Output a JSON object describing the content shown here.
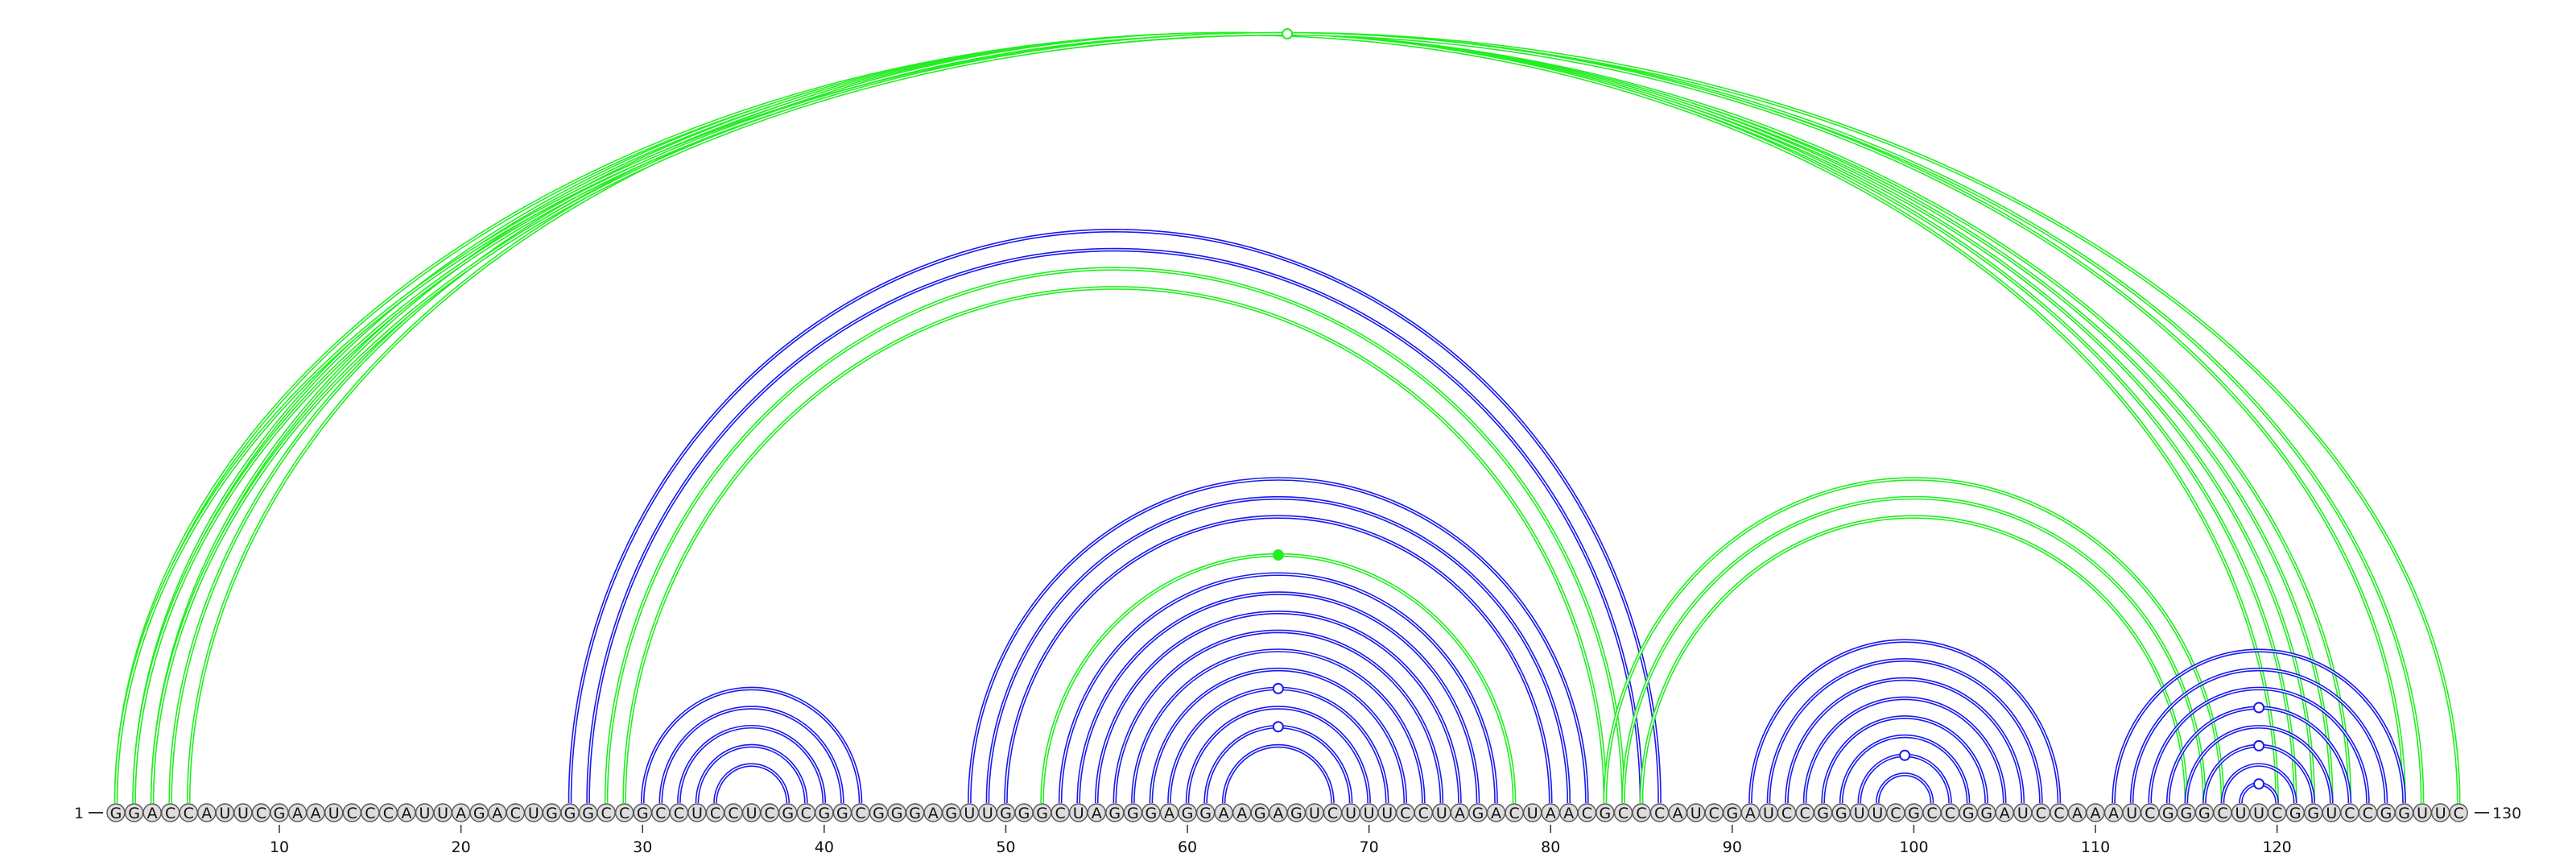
{
  "sequence": "GGACCAUUCGAAUCCCAUUAGACUGGGCCGCCUCCUCGCGGCGGGAGUUGGGCUAGGGAGGAAGAGUCUUUCCUAGACUAACGCCCAUCGAUCCGGUUCGCCGGAUCCAAAUCGGGCUUCGGUCCGGUUC",
  "start_label": "1",
  "end_label": "130",
  "ticks": [
    {
      "pos": 10,
      "label": "10"
    },
    {
      "pos": 20,
      "label": "20"
    },
    {
      "pos": 30,
      "label": "30"
    },
    {
      "pos": 40,
      "label": "40"
    },
    {
      "pos": 50,
      "label": "50"
    },
    {
      "pos": 60,
      "label": "60"
    },
    {
      "pos": 70,
      "label": "70"
    },
    {
      "pos": 80,
      "label": "80"
    },
    {
      "pos": 90,
      "label": "90"
    },
    {
      "pos": 100,
      "label": "100"
    },
    {
      "pos": 110,
      "label": "110"
    },
    {
      "pos": 120,
      "label": "120"
    }
  ],
  "colors": {
    "blue": "#1a1aee",
    "green": "#22ee22",
    "nucleotide_fill": "#dddddd",
    "nucleotide_stroke": "#555555"
  },
  "pairs": [
    {
      "i": 1,
      "j": 124,
      "color": "green"
    },
    {
      "i": 2,
      "j": 123,
      "color": "green"
    },
    {
      "i": 3,
      "j": 122,
      "color": "green"
    },
    {
      "i": 4,
      "j": 121,
      "color": "green"
    },
    {
      "i": 5,
      "j": 120,
      "color": "green"
    },
    {
      "i": 1,
      "j": 130,
      "color": "green"
    },
    {
      "i": 2,
      "j": 128,
      "color": "green"
    },
    {
      "i": 3,
      "j": 127,
      "color": "green"
    },
    {
      "i": 26,
      "j": 86,
      "color": "blue"
    },
    {
      "i": 27,
      "j": 85,
      "color": "blue"
    },
    {
      "i": 28,
      "j": 84,
      "color": "green"
    },
    {
      "i": 29,
      "j": 83,
      "color": "green"
    },
    {
      "i": 30,
      "j": 42,
      "color": "blue"
    },
    {
      "i": 31,
      "j": 41,
      "color": "blue"
    },
    {
      "i": 32,
      "j": 40,
      "color": "blue"
    },
    {
      "i": 33,
      "j": 39,
      "color": "blue"
    },
    {
      "i": 34,
      "j": 38,
      "color": "blue"
    },
    {
      "i": 48,
      "j": 82,
      "color": "blue"
    },
    {
      "i": 49,
      "j": 81,
      "color": "blue"
    },
    {
      "i": 50,
      "j": 80,
      "color": "blue"
    },
    {
      "i": 52,
      "j": 78,
      "color": "green"
    },
    {
      "i": 53,
      "j": 77,
      "color": "blue"
    },
    {
      "i": 54,
      "j": 76,
      "color": "blue"
    },
    {
      "i": 55,
      "j": 75,
      "color": "blue"
    },
    {
      "i": 56,
      "j": 74,
      "color": "blue"
    },
    {
      "i": 57,
      "j": 73,
      "color": "blue"
    },
    {
      "i": 58,
      "j": 72,
      "color": "blue"
    },
    {
      "i": 59,
      "j": 71,
      "color": "blue"
    },
    {
      "i": 60,
      "j": 70,
      "color": "blue"
    },
    {
      "i": 61,
      "j": 69,
      "color": "blue"
    },
    {
      "i": 62,
      "j": 68,
      "color": "blue"
    },
    {
      "i": 83,
      "j": 117,
      "color": "green"
    },
    {
      "i": 84,
      "j": 116,
      "color": "green"
    },
    {
      "i": 85,
      "j": 115,
      "color": "green"
    },
    {
      "i": 91,
      "j": 108,
      "color": "blue"
    },
    {
      "i": 92,
      "j": 107,
      "color": "blue"
    },
    {
      "i": 93,
      "j": 106,
      "color": "blue"
    },
    {
      "i": 94,
      "j": 105,
      "color": "blue"
    },
    {
      "i": 95,
      "j": 104,
      "color": "blue"
    },
    {
      "i": 96,
      "j": 103,
      "color": "blue"
    },
    {
      "i": 97,
      "j": 102,
      "color": "blue"
    },
    {
      "i": 98,
      "j": 101,
      "color": "blue"
    },
    {
      "i": 111,
      "j": 127,
      "color": "blue"
    },
    {
      "i": 112,
      "j": 126,
      "color": "blue"
    },
    {
      "i": 113,
      "j": 125,
      "color": "blue"
    },
    {
      "i": 114,
      "j": 124,
      "color": "blue"
    },
    {
      "i": 115,
      "j": 123,
      "color": "blue"
    },
    {
      "i": 116,
      "j": 122,
      "color": "blue"
    },
    {
      "i": 117,
      "j": 121,
      "color": "blue"
    },
    {
      "i": 118,
      "j": 120,
      "color": "blue"
    }
  ],
  "markers": [
    {
      "i": 1,
      "j": 130,
      "color": "green",
      "filled": false
    },
    {
      "i": 52,
      "j": 78,
      "color": "green",
      "filled": true
    },
    {
      "i": 59,
      "j": 71,
      "color": "blue",
      "filled": false
    },
    {
      "i": 61,
      "j": 69,
      "color": "blue",
      "filled": false
    },
    {
      "i": 97,
      "j": 102,
      "color": "blue",
      "filled": false
    },
    {
      "i": 114,
      "j": 124,
      "color": "blue",
      "filled": false
    },
    {
      "i": 116,
      "j": 122,
      "color": "blue",
      "filled": false
    },
    {
      "i": 118,
      "j": 120,
      "color": "blue",
      "filled": false
    }
  ]
}
